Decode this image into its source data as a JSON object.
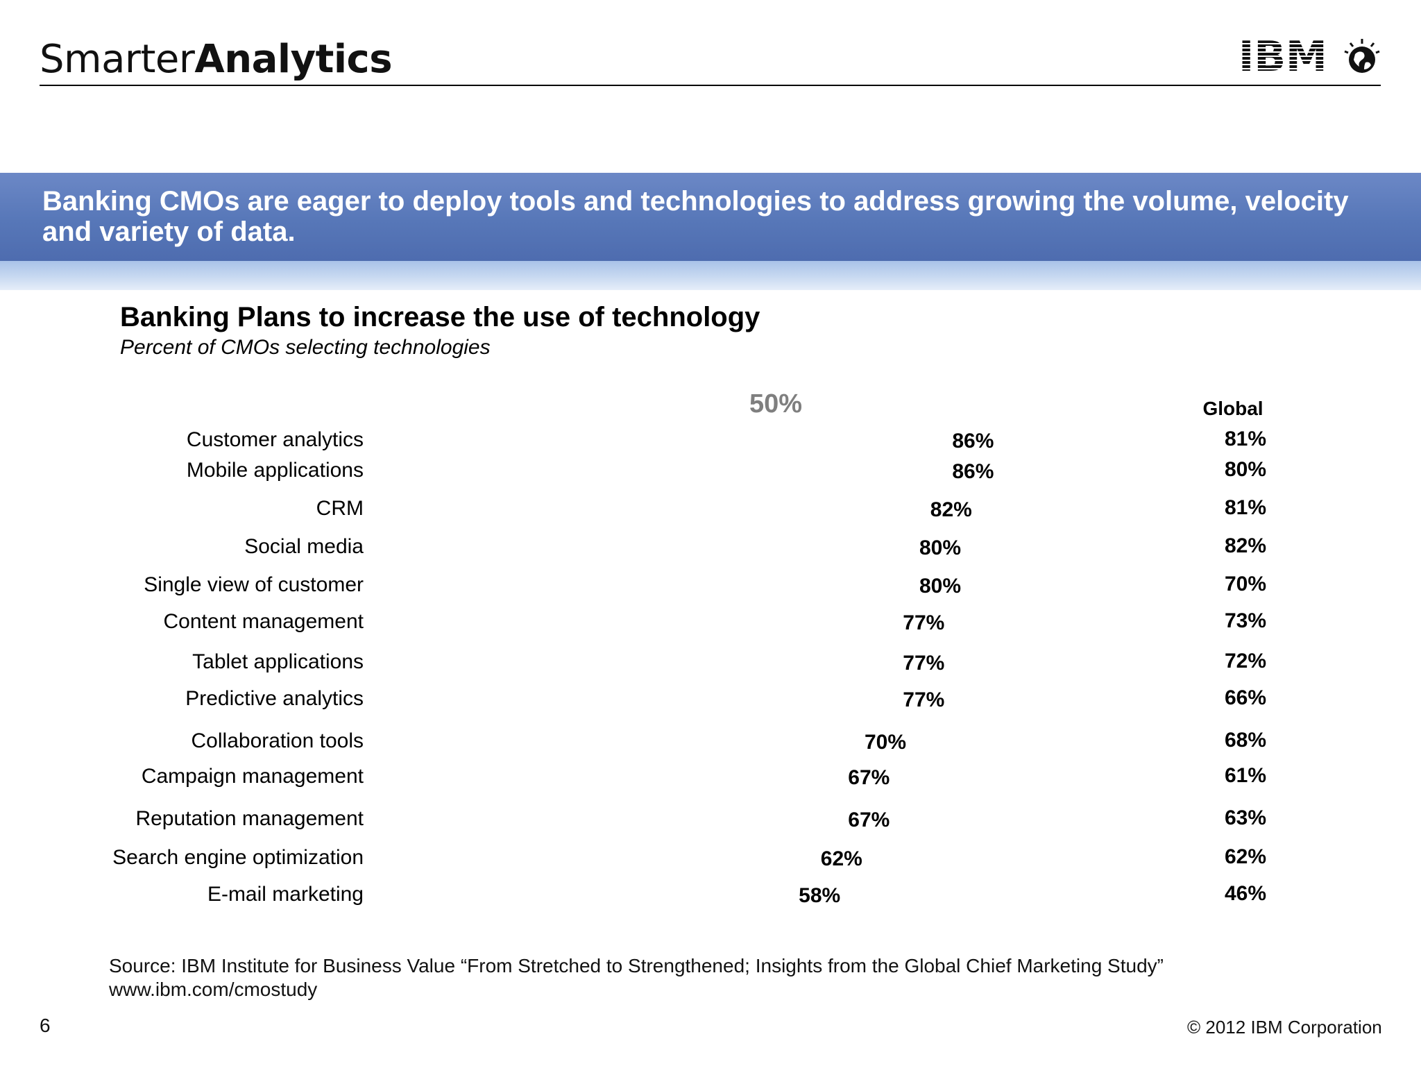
{
  "header": {
    "brand_light": "Smarter",
    "brand_bold": "Analytics",
    "logo_text": "IBM"
  },
  "banner": {
    "title": "Banking CMOs are eager to deploy tools and technologies to address growing the volume, velocity and variety of data."
  },
  "chart_data": {
    "type": "bar",
    "title": "Banking Plans to increase the use of technology",
    "subtitle": "Percent of CMOs selecting technologies",
    "reference_label": "50%",
    "global_header": "Global",
    "categories": [
      "Customer analytics",
      "Mobile applications",
      "CRM",
      "Social media",
      "Single view of customer",
      "Content management",
      "Tablet applications",
      "Predictive analytics",
      "Collaboration tools",
      "Campaign management",
      "Reputation management",
      "Search engine optimization",
      "E-mail marketing"
    ],
    "values": [
      86,
      86,
      82,
      80,
      80,
      77,
      77,
      77,
      70,
      67,
      67,
      62,
      58
    ],
    "value_labels": [
      "86%",
      "86%",
      "82%",
      "80%",
      "80%",
      "77%",
      "77%",
      "77%",
      "70%",
      "67%",
      "67%",
      "62%",
      "58%"
    ],
    "global_values": [
      81,
      80,
      81,
      82,
      70,
      73,
      72,
      66,
      68,
      61,
      63,
      62,
      46
    ],
    "global_labels": [
      "81%",
      "80%",
      "81%",
      "82%",
      "70%",
      "73%",
      "72%",
      "66%",
      "68%",
      "61%",
      "63%",
      "62%",
      "46%"
    ]
  },
  "footer": {
    "source_line1": "Source: IBM Institute for Business Value “From Stretched to Strengthened; Insights from the Global Chief Marketing Study”",
    "source_line2": "www.ibm.com/cmostudy",
    "page_number": "6",
    "copyright": "© 2012 IBM Corporation"
  },
  "colors": {
    "banner": "#5777b8",
    "banner_text": "#ffffff",
    "reference_label": "#7f7f7f"
  }
}
